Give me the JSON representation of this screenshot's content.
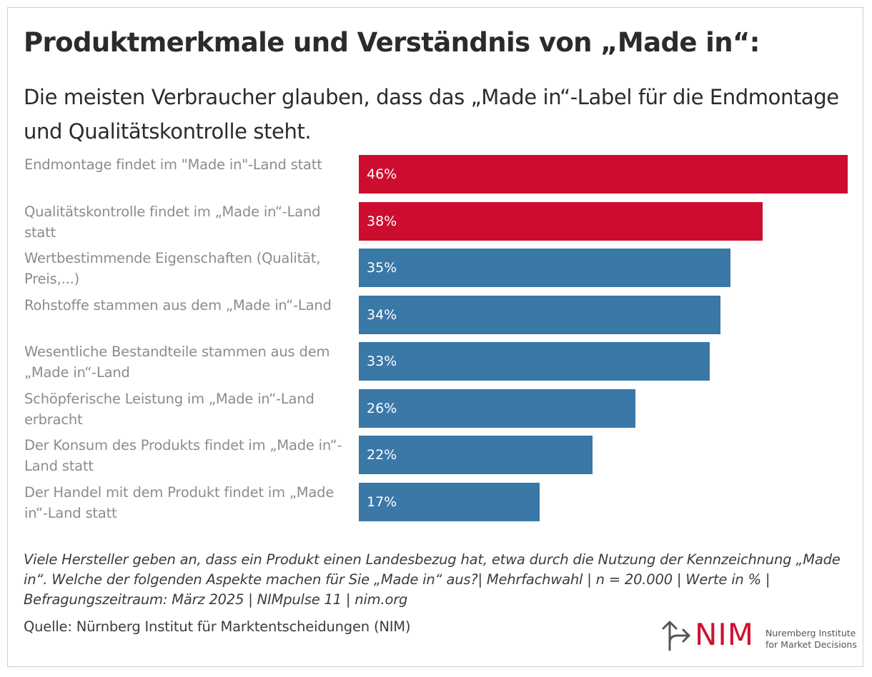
{
  "title": "Produktmerkmale und Verständnis von „Made in“:",
  "subtitle": "Die meisten Verbraucher glauben, dass das „Made in“-Label für die Endmontage und Qualitätskontrolle steht.",
  "colors": {
    "highlight": "#cc0d2f",
    "default": "#3a78a8"
  },
  "chart_data": {
    "type": "bar",
    "orientation": "horizontal",
    "categories": [
      "Endmontage findet im \"Made in\"-Land statt",
      "Qualitätskontrolle findet im „Made in“-Land statt",
      "Wertbestimmende Eigenschaften (Qualität, Preis,...)",
      "Rohstoffe stammen aus dem „Made in“-Land",
      "Wesentliche Bestandteile stammen aus dem „Made in“-Land",
      "Schöpferische Leistung im „Made in“-Land erbracht",
      "Der Konsum des Produkts findet im „Made in“-Land statt",
      "Der Handel mit dem Produkt findet im „Made in“-Land statt"
    ],
    "values": [
      46,
      38,
      35,
      34,
      33,
      26,
      22,
      17
    ],
    "value_labels": [
      "46%",
      "38%",
      "35%",
      "34%",
      "33%",
      "26%",
      "22%",
      "17%"
    ],
    "highlighted": [
      true,
      true,
      false,
      false,
      false,
      false,
      false,
      false
    ],
    "unit": "%",
    "xlim": [
      0,
      46
    ],
    "grid": false,
    "legend": "none"
  },
  "footnote": "Viele Hersteller geben an, dass ein Produkt einen Landesbezug hat, etwa durch die Nutzung der Kennzeichnung „Made in“. Welche der folgenden Aspekte machen für Sie „Made in“ aus?| Mehrfachwahl | n = 20.000 | Werte in % | Befragungszeitraum: März 2025 | NIMpulse 11 | nim.org",
  "source": "Quelle: Nürnberg Institut für Marktentscheidungen (NIM)",
  "logo": {
    "name": "NIM",
    "line1": "Nuremberg Institute",
    "line2": "for Market Decisions",
    "icon": "arrow-split-icon"
  }
}
